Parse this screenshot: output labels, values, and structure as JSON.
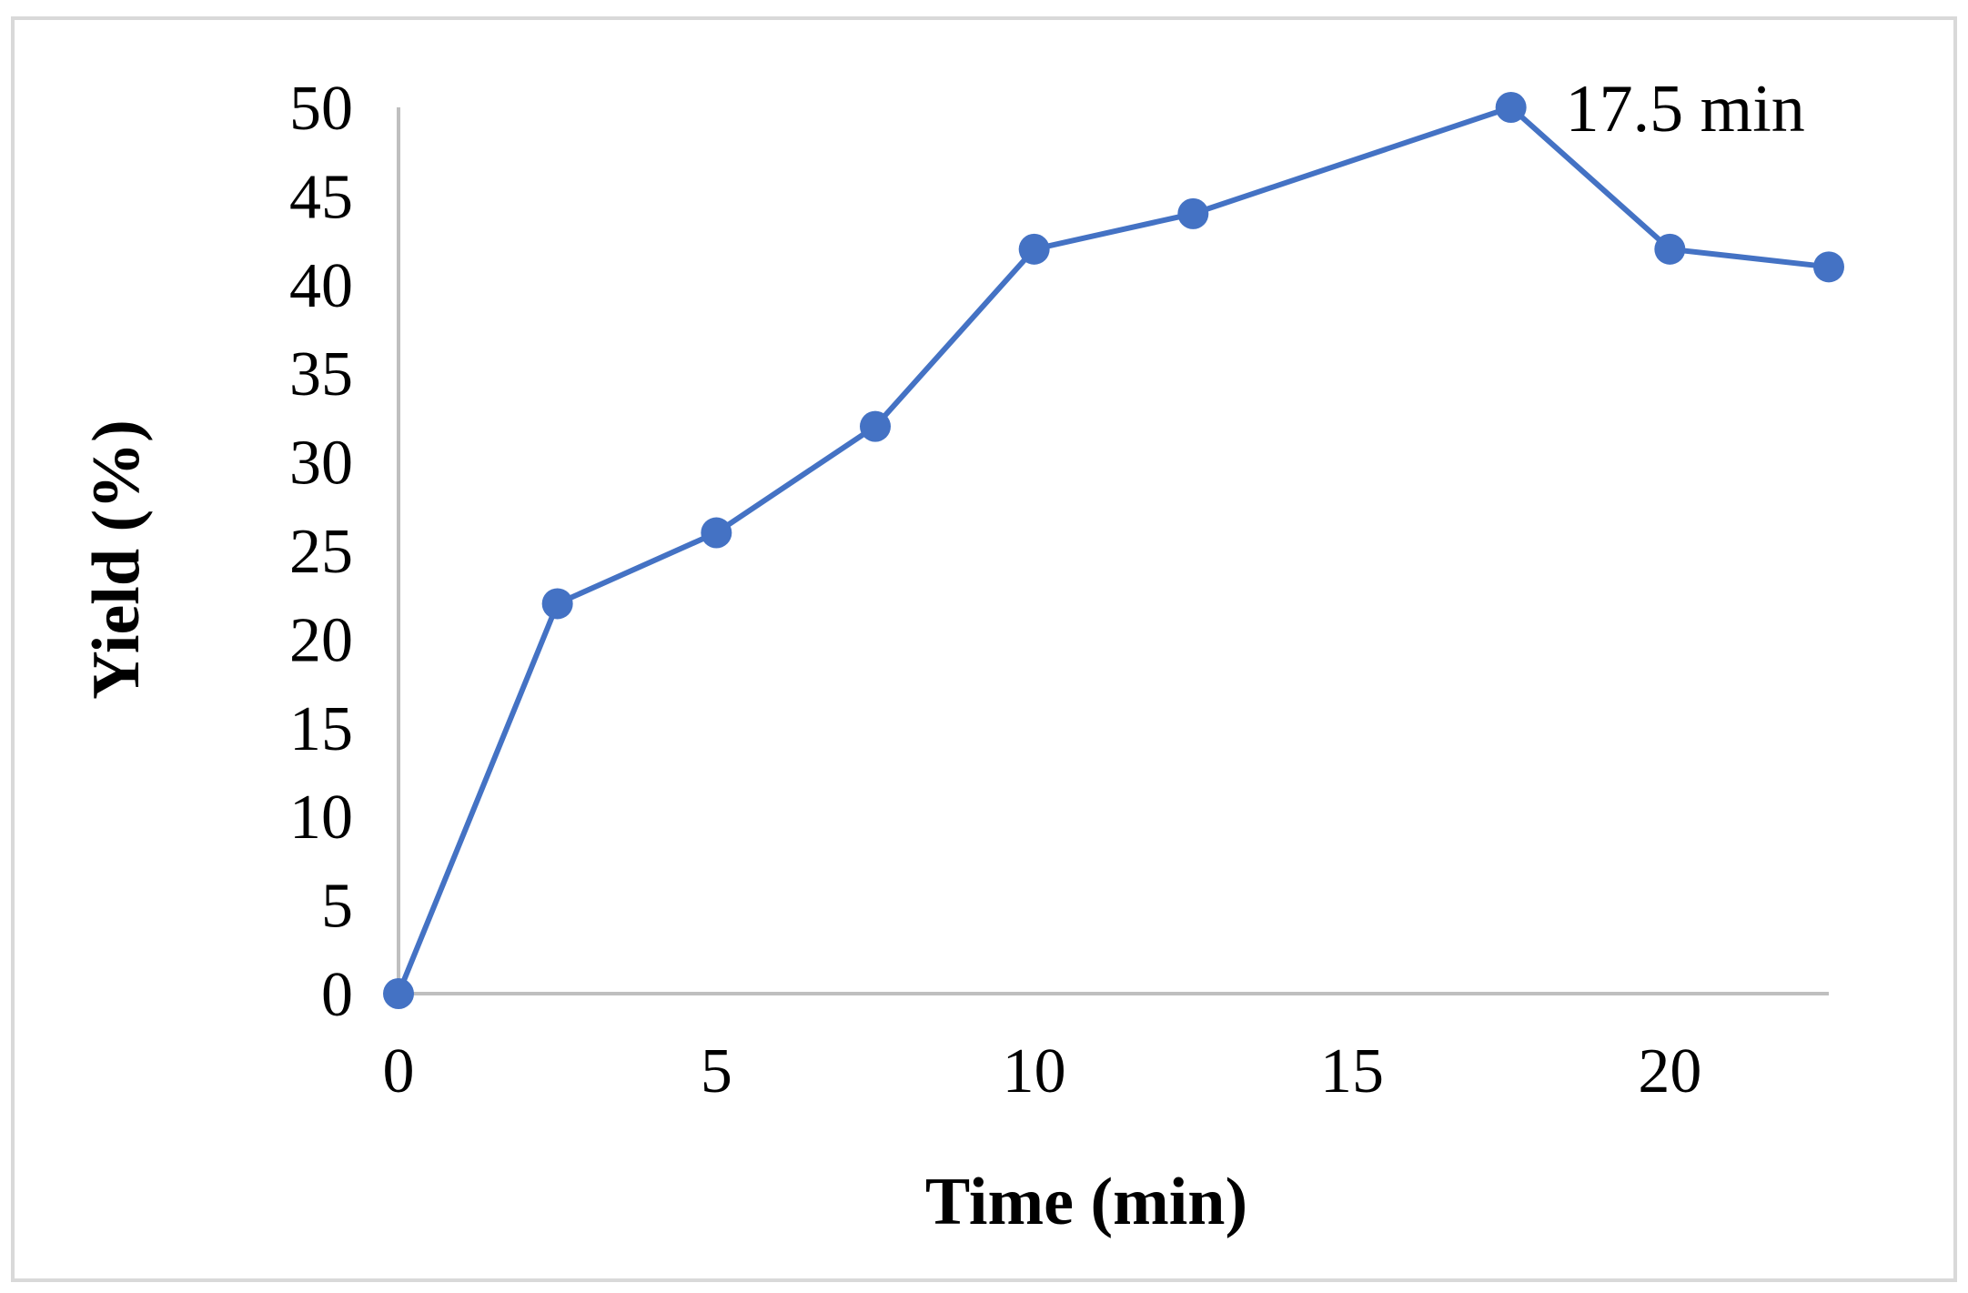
{
  "chart_data": {
    "type": "line",
    "title": "",
    "xlabel": "Time (min)",
    "ylabel": "Yield (%)",
    "xlim": [
      0,
      22.5
    ],
    "ylim": [
      0,
      50
    ],
    "x_ticks": [
      0,
      5,
      10,
      15,
      20
    ],
    "y_ticks": [
      0,
      5,
      10,
      15,
      20,
      25,
      30,
      35,
      40,
      45,
      50
    ],
    "grid": false,
    "legend": "none",
    "series": [
      {
        "color": "#4472C4",
        "marker": "circle",
        "x": [
          0,
          2.5,
          5,
          7.5,
          10,
          12.5,
          17.5,
          20,
          22.5
        ],
        "y": [
          0,
          22,
          26,
          32,
          42,
          44,
          50,
          42,
          41
        ]
      }
    ],
    "annotations": [
      {
        "text": "17.5 min",
        "x": 17.5,
        "y": 50
      }
    ]
  }
}
